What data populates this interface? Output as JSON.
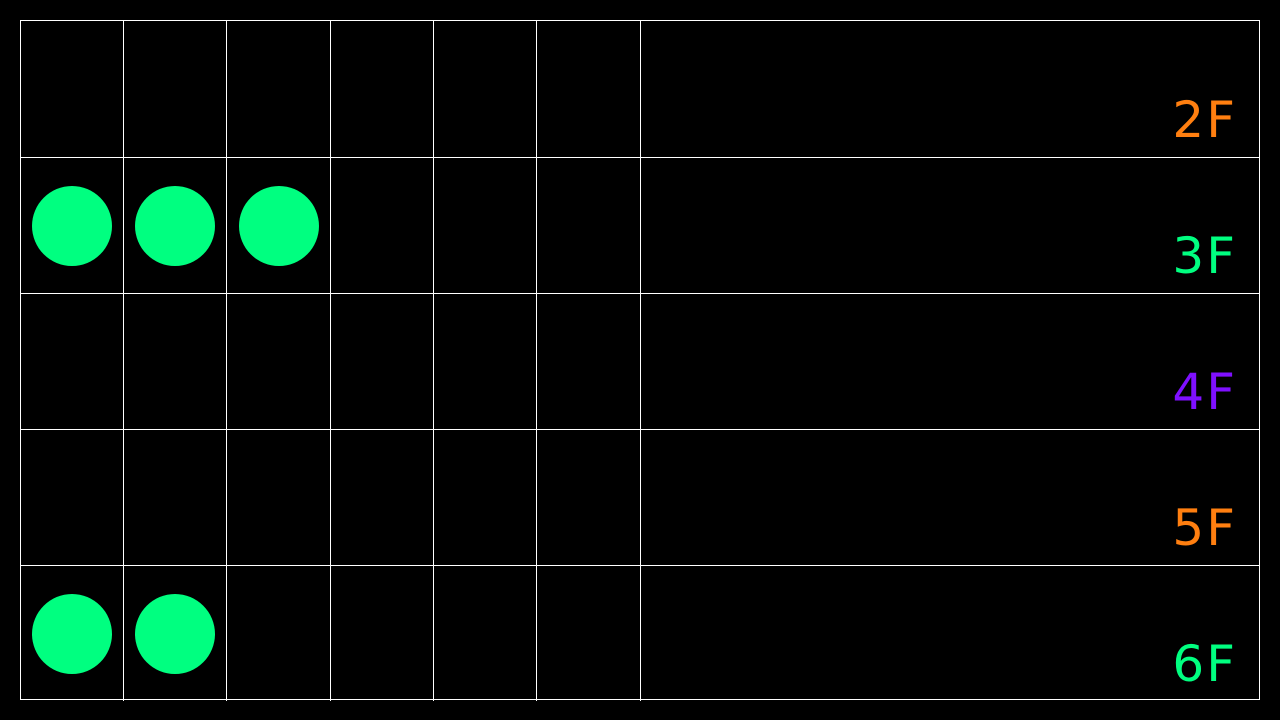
{
  "board": {
    "columns": 6,
    "rows": [
      {
        "floor": "2F",
        "color": "#ff7f10",
        "dots": 0
      },
      {
        "floor": "3F",
        "color": "#00ff80",
        "dots": 3
      },
      {
        "floor": "4F",
        "color": "#7f10ff",
        "dots": 0
      },
      {
        "floor": "5F",
        "color": "#ff7f10",
        "dots": 0
      },
      {
        "floor": "6F",
        "color": "#00ff80",
        "dots": 2
      }
    ],
    "dot_color": "#00ff80"
  }
}
